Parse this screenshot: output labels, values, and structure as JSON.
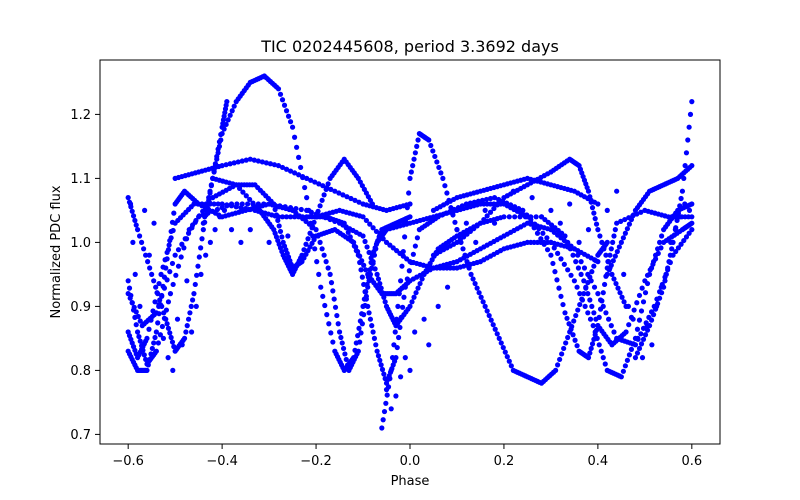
{
  "chart_data": {
    "type": "scatter",
    "title": "TIC 0202445608, period 3.3692 days",
    "xlabel": "Phase",
    "ylabel": "Normalized PDC flux",
    "xlim": [
      -0.66,
      0.66
    ],
    "ylim": [
      0.685,
      1.285
    ],
    "xticks": [
      -0.6,
      -0.4,
      -0.2,
      0.0,
      0.2,
      0.4,
      0.6
    ],
    "xtick_labels": [
      "−0.6",
      "−0.4",
      "−0.2",
      "0.0",
      "0.2",
      "0.4",
      "0.6"
    ],
    "yticks": [
      0.7,
      0.8,
      0.9,
      1.0,
      1.1,
      1.2
    ],
    "ytick_labels": [
      "0.7",
      "0.8",
      "0.9",
      "1.0",
      "1.1",
      "1.2"
    ],
    "grid": false,
    "legend": "none",
    "marker_color": "#0000ff",
    "series": [
      {
        "points": [
          [
            -0.6,
            0.83
          ],
          [
            -0.58,
            0.8
          ],
          [
            -0.56,
            0.8
          ],
          [
            -0.54,
            0.86
          ],
          [
            -0.52,
            0.96
          ],
          [
            -0.5,
            1.06
          ],
          [
            -0.48,
            1.08
          ],
          [
            -0.45,
            1.06
          ],
          [
            -0.4,
            1.04
          ],
          [
            -0.35,
            1.05
          ],
          [
            -0.3,
            1.06
          ],
          [
            -0.25,
            1.05
          ],
          [
            -0.2,
            1.02
          ],
          [
            -0.17,
            0.95
          ],
          [
            -0.15,
            0.86
          ],
          [
            -0.13,
            0.8
          ],
          [
            -0.11,
            0.83
          ],
          [
            -0.09,
            0.93
          ],
          [
            -0.07,
            1.0
          ],
          [
            -0.05,
            1.02
          ],
          [
            0.0,
            1.03
          ],
          [
            0.05,
            1.04
          ],
          [
            0.1,
            1.05
          ],
          [
            0.15,
            1.06
          ],
          [
            0.2,
            1.06
          ],
          [
            0.25,
            1.04
          ],
          [
            0.3,
            0.98
          ],
          [
            0.33,
            0.89
          ],
          [
            0.36,
            0.83
          ],
          [
            0.38,
            0.82
          ],
          [
            0.4,
            0.87
          ],
          [
            0.42,
            0.96
          ],
          [
            0.44,
            1.03
          ],
          [
            0.5,
            1.05
          ],
          [
            0.55,
            1.04
          ],
          [
            0.6,
            1.04
          ]
        ]
      },
      {
        "points": [
          [
            -0.6,
            0.86
          ],
          [
            -0.58,
            0.82
          ],
          [
            -0.56,
            0.85
          ],
          [
            -0.53,
            0.95
          ],
          [
            -0.5,
            1.03
          ],
          [
            -0.46,
            1.06
          ],
          [
            -0.4,
            1.06
          ],
          [
            -0.33,
            1.05
          ],
          [
            -0.28,
            1.04
          ],
          [
            -0.22,
            1.04
          ],
          [
            -0.18,
            1.04
          ],
          [
            -0.14,
            1.03
          ],
          [
            -0.11,
            0.98
          ],
          [
            -0.09,
            0.9
          ],
          [
            -0.07,
            0.83
          ],
          [
            -0.05,
            0.78
          ],
          [
            -0.03,
            0.82
          ],
          [
            -0.01,
            0.93
          ],
          [
            0.02,
            1.02
          ],
          [
            0.06,
            1.04
          ],
          [
            0.12,
            1.06
          ],
          [
            0.18,
            1.07
          ],
          [
            0.24,
            1.05
          ],
          [
            0.3,
            1.0
          ],
          [
            0.35,
            0.94
          ],
          [
            0.39,
            0.87
          ],
          [
            0.42,
            0.8
          ],
          [
            0.45,
            0.79
          ],
          [
            0.48,
            0.85
          ],
          [
            0.51,
            0.95
          ],
          [
            0.54,
            1.02
          ],
          [
            0.57,
            1.05
          ],
          [
            0.6,
            1.06
          ]
        ]
      },
      {
        "points": [
          [
            -0.6,
            0.92
          ],
          [
            -0.57,
            0.87
          ],
          [
            -0.54,
            0.89
          ],
          [
            -0.5,
            0.98
          ],
          [
            -0.45,
            1.04
          ],
          [
            -0.38,
            1.06
          ],
          [
            -0.3,
            1.06
          ],
          [
            -0.22,
            1.05
          ],
          [
            -0.15,
            1.03
          ],
          [
            -0.1,
            1.01
          ],
          [
            -0.07,
            0.95
          ],
          [
            -0.05,
            0.9
          ],
          [
            -0.03,
            0.87
          ],
          [
            0.0,
            0.9
          ],
          [
            0.03,
            0.95
          ],
          [
            0.06,
            0.99
          ],
          [
            0.1,
            1.01
          ],
          [
            0.15,
            1.03
          ],
          [
            0.2,
            1.04
          ],
          [
            0.28,
            1.04
          ],
          [
            0.33,
            1.01
          ],
          [
            0.37,
            0.94
          ],
          [
            0.4,
            0.87
          ],
          [
            0.43,
            0.84
          ],
          [
            0.46,
            0.86
          ],
          [
            0.5,
            0.94
          ],
          [
            0.54,
            1.0
          ],
          [
            0.58,
            1.02
          ],
          [
            0.6,
            1.03
          ]
        ]
      },
      {
        "points": [
          [
            -0.6,
            0.94
          ],
          [
            -0.58,
            0.86
          ],
          [
            -0.56,
            0.81
          ],
          [
            -0.54,
            0.83
          ],
          [
            -0.51,
            0.92
          ],
          [
            -0.47,
            1.02
          ],
          [
            -0.42,
            1.07
          ],
          [
            -0.37,
            1.09
          ],
          [
            -0.33,
            1.09
          ],
          [
            -0.29,
            1.06
          ],
          [
            -0.27,
            1.0
          ],
          [
            -0.25,
            0.96
          ],
          [
            -0.23,
            0.97
          ],
          [
            -0.2,
            1.01
          ],
          [
            -0.16,
            1.02
          ],
          [
            -0.12,
            1.0
          ],
          [
            -0.09,
            0.95
          ],
          [
            -0.06,
            0.92
          ],
          [
            -0.03,
            0.92
          ],
          [
            0.0,
            0.94
          ],
          [
            0.05,
            0.96
          ],
          [
            0.1,
            0.97
          ],
          [
            0.15,
            0.99
          ],
          [
            0.2,
            1.01
          ],
          [
            0.25,
            1.03
          ],
          [
            0.3,
            1.02
          ],
          [
            0.35,
            0.99
          ],
          [
            0.4,
            0.92
          ],
          [
            0.44,
            0.85
          ],
          [
            0.48,
            0.84
          ],
          [
            0.52,
            0.9
          ],
          [
            0.56,
            0.98
          ],
          [
            0.6,
            1.02
          ]
        ]
      },
      {
        "points": [
          [
            -0.6,
            1.07
          ],
          [
            -0.58,
            1.02
          ],
          [
            -0.55,
            0.95
          ],
          [
            -0.52,
            0.88
          ],
          [
            -0.5,
            0.83
          ],
          [
            -0.48,
            0.85
          ],
          [
            -0.46,
            0.92
          ],
          [
            -0.44,
            1.02
          ],
          [
            -0.42,
            1.1
          ],
          [
            -0.4,
            1.18
          ],
          [
            -0.39,
            1.22
          ]
        ]
      },
      {
        "points": [
          [
            -0.44,
            1.03
          ],
          [
            -0.42,
            1.1
          ],
          [
            -0.4,
            1.17
          ],
          [
            -0.37,
            1.22
          ],
          [
            -0.34,
            1.25
          ],
          [
            -0.31,
            1.26
          ],
          [
            -0.28,
            1.24
          ],
          [
            -0.25,
            1.18
          ],
          [
            -0.22,
            1.07
          ],
          [
            -0.19,
            0.93
          ],
          [
            -0.16,
            0.83
          ],
          [
            -0.14,
            0.8
          ],
          [
            -0.12,
            0.82
          ],
          [
            -0.1,
            0.9
          ],
          [
            -0.08,
            0.98
          ],
          [
            -0.06,
            1.02
          ],
          [
            -0.03,
            1.03
          ],
          [
            0.0,
            1.04
          ]
        ]
      },
      {
        "points": [
          [
            -0.06,
            0.71
          ],
          [
            -0.04,
            0.8
          ],
          [
            -0.02,
            0.94
          ],
          [
            0.0,
            1.1
          ],
          [
            0.02,
            1.17
          ],
          [
            0.04,
            1.16
          ],
          [
            0.07,
            1.1
          ],
          [
            0.1,
            1.02
          ],
          [
            0.13,
            0.95
          ],
          [
            0.16,
            0.9
          ],
          [
            0.19,
            0.85
          ],
          [
            0.22,
            0.8
          ],
          [
            0.25,
            0.79
          ],
          [
            0.28,
            0.78
          ],
          [
            0.31,
            0.8
          ],
          [
            0.34,
            0.86
          ],
          [
            0.37,
            0.92
          ],
          [
            0.4,
            0.98
          ],
          [
            0.42,
            1.0
          ]
        ]
      },
      {
        "points": [
          [
            -0.5,
            1.1
          ],
          [
            -0.45,
            1.11
          ],
          [
            -0.4,
            1.12
          ],
          [
            -0.34,
            1.13
          ],
          [
            -0.28,
            1.12
          ],
          [
            -0.22,
            1.1
          ],
          [
            -0.16,
            1.08
          ],
          [
            -0.1,
            1.06
          ],
          [
            -0.05,
            1.05
          ],
          [
            0.0,
            1.06
          ]
        ]
      },
      {
        "points": [
          [
            -0.42,
            1.1
          ],
          [
            -0.37,
            1.09
          ],
          [
            -0.32,
            1.05
          ],
          [
            -0.29,
            1.02
          ],
          [
            -0.27,
            0.98
          ],
          [
            -0.25,
            0.95
          ],
          [
            -0.23,
            0.98
          ],
          [
            -0.2,
            1.04
          ],
          [
            -0.17,
            1.1
          ],
          [
            -0.14,
            1.13
          ],
          [
            -0.11,
            1.1
          ],
          [
            -0.08,
            1.06
          ]
        ]
      },
      {
        "points": [
          [
            0.05,
            0.98
          ],
          [
            0.1,
            1.0
          ],
          [
            0.15,
            1.03
          ],
          [
            0.2,
            1.07
          ],
          [
            0.25,
            1.09
          ],
          [
            0.3,
            1.11
          ],
          [
            0.34,
            1.13
          ],
          [
            0.36,
            1.12
          ],
          [
            0.38,
            1.08
          ],
          [
            0.4,
            1.02
          ],
          [
            0.43,
            0.95
          ],
          [
            0.46,
            0.9
          ]
        ]
      },
      {
        "points": [
          [
            0.42,
            0.95
          ],
          [
            0.45,
            1.0
          ],
          [
            0.48,
            1.05
          ],
          [
            0.51,
            1.08
          ],
          [
            0.54,
            1.09
          ],
          [
            0.57,
            1.1
          ],
          [
            0.6,
            1.12
          ]
        ]
      },
      {
        "points": [
          [
            0.48,
            0.82
          ],
          [
            0.51,
            0.87
          ],
          [
            0.54,
            0.93
          ],
          [
            0.56,
            1.0
          ],
          [
            0.58,
            1.08
          ],
          [
            0.6,
            1.22
          ]
        ]
      },
      {
        "points": [
          [
            0.05,
            1.05
          ],
          [
            0.1,
            1.07
          ],
          [
            0.15,
            1.08
          ],
          [
            0.2,
            1.09
          ],
          [
            0.25,
            1.1
          ],
          [
            0.3,
            1.09
          ],
          [
            0.35,
            1.08
          ],
          [
            0.4,
            1.06
          ]
        ]
      },
      {
        "points": [
          [
            -0.2,
            1.04
          ],
          [
            -0.15,
            1.05
          ],
          [
            -0.1,
            1.04
          ],
          [
            -0.05,
            1.0
          ],
          [
            0.0,
            0.97
          ],
          [
            0.05,
            0.96
          ],
          [
            0.1,
            0.96
          ],
          [
            0.15,
            0.97
          ],
          [
            0.2,
            0.99
          ],
          [
            0.25,
            1.0
          ],
          [
            0.3,
            1.0
          ],
          [
            0.35,
            0.99
          ],
          [
            0.4,
            0.97
          ]
        ]
      }
    ],
    "scattered_points": [
      [
        -0.595,
        1.06
      ],
      [
        -0.59,
        1.0
      ],
      [
        -0.585,
        0.95
      ],
      [
        -0.575,
        0.9
      ],
      [
        -0.565,
        1.05
      ],
      [
        -0.555,
        0.98
      ],
      [
        -0.545,
        1.03
      ],
      [
        -0.535,
        0.9
      ],
      [
        -0.525,
        0.85
      ],
      [
        -0.515,
        0.82
      ],
      [
        -0.505,
        0.8
      ],
      [
        -0.495,
        0.88
      ],
      [
        -0.485,
        0.84
      ],
      [
        -0.475,
        0.94
      ],
      [
        -0.465,
        0.86
      ],
      [
        -0.455,
        0.9
      ],
      [
        -0.445,
        0.95
      ],
      [
        -0.435,
        0.98
      ],
      [
        -0.425,
        1.0
      ],
      [
        -0.415,
        1.02
      ],
      [
        -0.405,
        1.04
      ],
      [
        -0.395,
        1.05
      ],
      [
        -0.38,
        1.02
      ],
      [
        -0.36,
        1.0
      ],
      [
        -0.34,
        1.02
      ],
      [
        -0.3,
        1.0
      ],
      [
        -0.26,
        1.01
      ],
      [
        0.1,
        1.02
      ],
      [
        0.12,
        1.03
      ],
      [
        0.14,
        1.0
      ],
      [
        0.16,
        1.05
      ],
      [
        0.18,
        1.03
      ],
      [
        0.22,
        1.08
      ],
      [
        0.24,
        1.05
      ],
      [
        0.26,
        1.07
      ],
      [
        0.28,
        1.04
      ],
      [
        0.3,
        1.05
      ],
      [
        0.32,
        1.03
      ],
      [
        0.34,
        1.06
      ],
      [
        0.36,
        1.0
      ],
      [
        0.38,
        1.02
      ],
      [
        0.42,
        1.05
      ],
      [
        0.44,
        1.08
      ],
      [
        0.455,
        0.95
      ],
      [
        0.465,
        0.9
      ],
      [
        0.475,
        0.88
      ],
      [
        0.485,
        0.85
      ],
      [
        0.495,
        0.82
      ],
      [
        0.505,
        0.87
      ],
      [
        0.515,
        0.84
      ],
      [
        0.525,
        0.9
      ],
      [
        0.535,
        0.93
      ],
      [
        0.545,
        0.95
      ],
      [
        0.555,
        1.0
      ],
      [
        0.565,
        1.02
      ],
      [
        0.575,
        1.04
      ],
      [
        0.585,
        1.06
      ],
      [
        0.595,
        1.05
      ],
      [
        -0.05,
        0.77
      ],
      [
        -0.04,
        0.74
      ],
      [
        -0.03,
        0.76
      ],
      [
        -0.02,
        0.79
      ],
      [
        -0.01,
        0.82
      ],
      [
        0.01,
        0.86
      ],
      [
        0.03,
        0.88
      ],
      [
        0.06,
        0.9
      ],
      [
        0.08,
        0.93
      ],
      [
        0.04,
        0.84
      ],
      [
        0.0,
        0.8
      ]
    ]
  }
}
